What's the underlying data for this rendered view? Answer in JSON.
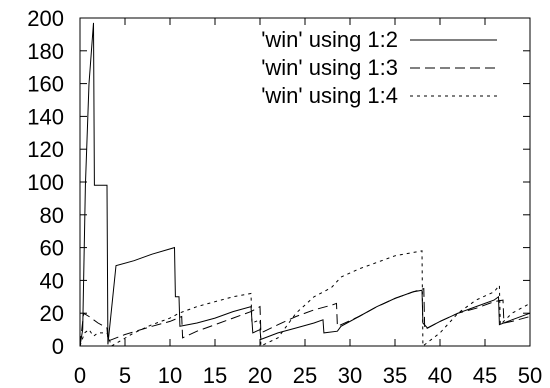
{
  "chart_data": {
    "type": "line",
    "title": "",
    "xlabel": "",
    "ylabel": "",
    "xlim": [
      0,
      50
    ],
    "ylim": [
      0,
      200
    ],
    "xticks": [
      0,
      5,
      10,
      15,
      20,
      25,
      30,
      35,
      40,
      45,
      50
    ],
    "yticks": [
      0,
      20,
      40,
      60,
      80,
      100,
      120,
      140,
      160,
      180,
      200
    ],
    "xtick_labels": [
      "0",
      "5",
      "10",
      "15",
      "20",
      "25",
      "30",
      "35",
      "40",
      "45",
      "50"
    ],
    "ytick_labels": [
      "0",
      "20",
      "40",
      "60",
      "80",
      "100",
      "120",
      "140",
      "160",
      "180",
      "200"
    ],
    "grid": false,
    "legend_position": "top-right",
    "series": [
      {
        "name": "'win' using 1:2",
        "style": "solid",
        "points": [
          [
            0,
            0
          ],
          [
            0.3,
            10
          ],
          [
            0.6,
            98
          ],
          [
            1,
            160
          ],
          [
            1.5,
            197
          ],
          [
            1.6,
            98
          ],
          [
            3,
            98
          ],
          [
            3.1,
            1
          ],
          [
            4,
            49
          ],
          [
            6,
            52
          ],
          [
            8,
            56
          ],
          [
            10.5,
            60
          ],
          [
            10.6,
            30
          ],
          [
            11,
            30
          ],
          [
            11.1,
            12
          ],
          [
            13,
            14
          ],
          [
            15,
            17
          ],
          [
            17,
            21
          ],
          [
            19,
            24
          ],
          [
            19.2,
            8
          ],
          [
            20,
            10
          ],
          [
            20.1,
            4
          ],
          [
            22,
            8
          ],
          [
            24,
            11
          ],
          [
            26,
            14
          ],
          [
            27,
            16
          ],
          [
            27.1,
            8
          ],
          [
            28.6,
            9
          ],
          [
            29,
            12
          ],
          [
            31,
            18
          ],
          [
            33,
            24
          ],
          [
            35,
            29
          ],
          [
            37,
            33
          ],
          [
            38,
            34
          ],
          [
            38.1,
            14
          ],
          [
            38.6,
            11
          ],
          [
            40,
            15
          ],
          [
            42,
            20
          ],
          [
            44,
            24
          ],
          [
            46,
            28
          ],
          [
            46.5,
            30
          ],
          [
            46.6,
            13
          ],
          [
            48,
            16
          ],
          [
            50,
            20
          ]
        ]
      },
      {
        "name": "'win' using 1:3",
        "style": "dashed",
        "points": [
          [
            0,
            0
          ],
          [
            0.4,
            20
          ],
          [
            1,
            18
          ],
          [
            2,
            14
          ],
          [
            3,
            11
          ],
          [
            3.1,
            3
          ],
          [
            5,
            7
          ],
          [
            8,
            12
          ],
          [
            10,
            15
          ],
          [
            11.3,
            18
          ],
          [
            11.4,
            5
          ],
          [
            13,
            9
          ],
          [
            15,
            13
          ],
          [
            17,
            17
          ],
          [
            19,
            21
          ],
          [
            20,
            24
          ],
          [
            20.1,
            8
          ],
          [
            22,
            13
          ],
          [
            24,
            18
          ],
          [
            26,
            22
          ],
          [
            28,
            25
          ],
          [
            28.5,
            26
          ],
          [
            28.6,
            12
          ],
          [
            31,
            18
          ],
          [
            33,
            24
          ],
          [
            35,
            29
          ],
          [
            37,
            33
          ],
          [
            38.2,
            35
          ],
          [
            38.3,
            10
          ],
          [
            40,
            15
          ],
          [
            42,
            20
          ],
          [
            44,
            23
          ],
          [
            46,
            27
          ],
          [
            47,
            28
          ],
          [
            47.1,
            14
          ],
          [
            48,
            15
          ],
          [
            50,
            18
          ]
        ]
      },
      {
        "name": "'win' using 1:4",
        "style": "dotted",
        "points": [
          [
            0,
            0
          ],
          [
            0.5,
            8
          ],
          [
            1,
            10
          ],
          [
            1.5,
            6
          ],
          [
            2,
            8
          ],
          [
            3,
            8
          ],
          [
            3.5,
            0
          ],
          [
            6,
            8
          ],
          [
            8,
            13
          ],
          [
            10,
            17
          ],
          [
            11,
            20
          ],
          [
            13,
            24
          ],
          [
            15,
            27
          ],
          [
            17,
            30
          ],
          [
            19,
            32
          ],
          [
            19.1,
            14
          ],
          [
            20,
            16
          ],
          [
            20.1,
            0
          ],
          [
            22,
            5
          ],
          [
            24,
            20
          ],
          [
            26,
            30
          ],
          [
            27.4,
            34
          ],
          [
            28,
            36
          ],
          [
            29,
            42
          ],
          [
            31,
            47
          ],
          [
            33,
            51
          ],
          [
            35,
            55
          ],
          [
            38,
            58
          ],
          [
            38.1,
            0
          ],
          [
            40,
            8
          ],
          [
            42,
            20
          ],
          [
            44,
            28
          ],
          [
            46,
            33
          ],
          [
            46.6,
            37
          ],
          [
            46.7,
            13
          ],
          [
            48,
            20
          ],
          [
            50,
            26
          ]
        ]
      }
    ]
  }
}
